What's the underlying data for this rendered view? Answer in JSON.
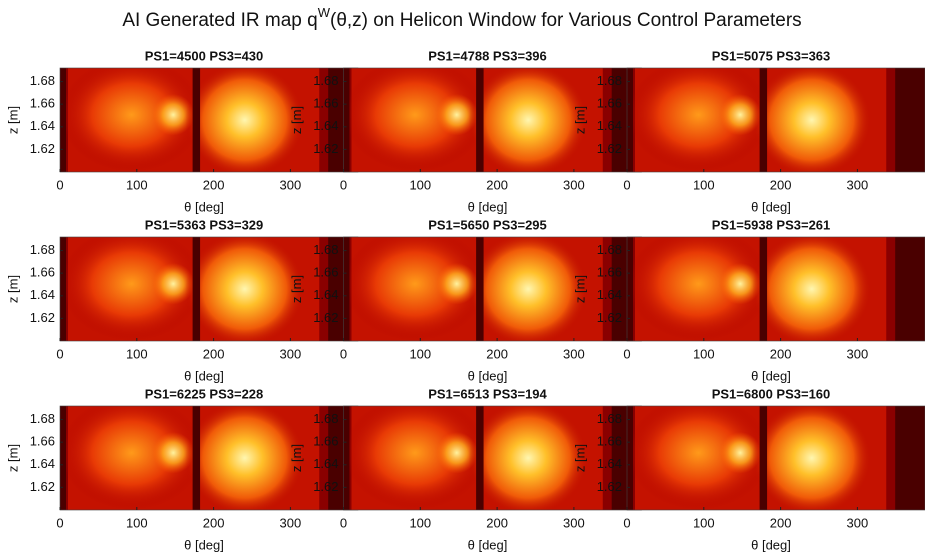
{
  "title_parts": [
    "AI Generated IR map q",
    "W",
    "(θ,z) on Helicon Window for Various Control Parameters"
  ],
  "chart_data": [
    {
      "type": "heatmap",
      "title": "PS1=4500 PS3=430",
      "xlabel": "θ [deg]",
      "ylabel": "z [m]",
      "xlim": [
        0,
        388
      ],
      "ylim": [
        1.6,
        1.692
      ],
      "xticks": [
        0,
        100,
        200,
        300
      ],
      "yticks": [
        1.62,
        1.64,
        1.66,
        1.68
      ]
    },
    {
      "type": "heatmap",
      "title": "PS1=4788 PS3=396",
      "xlabel": "θ [deg]",
      "ylabel": "z [m]",
      "xlim": [
        0,
        388
      ],
      "ylim": [
        1.6,
        1.692
      ],
      "xticks": [
        0,
        100,
        200,
        300
      ],
      "yticks": [
        1.62,
        1.64,
        1.66,
        1.68
      ]
    },
    {
      "type": "heatmap",
      "title": "PS1=5075 PS3=363",
      "xlabel": "θ [deg]",
      "ylabel": "z [m]",
      "xlim": [
        0,
        388
      ],
      "ylim": [
        1.6,
        1.692
      ],
      "xticks": [
        0,
        100,
        200,
        300
      ],
      "yticks": [
        1.62,
        1.64,
        1.66,
        1.68
      ]
    },
    {
      "type": "heatmap",
      "title": "PS1=5363 PS3=329",
      "xlabel": "θ [deg]",
      "ylabel": "z [m]",
      "xlim": [
        0,
        388
      ],
      "ylim": [
        1.6,
        1.692
      ],
      "xticks": [
        0,
        100,
        200,
        300
      ],
      "yticks": [
        1.62,
        1.64,
        1.66,
        1.68
      ]
    },
    {
      "type": "heatmap",
      "title": "PS1=5650 PS3=295",
      "xlabel": "θ [deg]",
      "ylabel": "z [m]",
      "xlim": [
        0,
        388
      ],
      "ylim": [
        1.6,
        1.692
      ],
      "xticks": [
        0,
        100,
        200,
        300
      ],
      "yticks": [
        1.62,
        1.64,
        1.66,
        1.68
      ]
    },
    {
      "type": "heatmap",
      "title": "PS1=5938 PS3=261",
      "xlabel": "θ [deg]",
      "ylabel": "z [m]",
      "xlim": [
        0,
        388
      ],
      "ylim": [
        1.6,
        1.692
      ],
      "xticks": [
        0,
        100,
        200,
        300
      ],
      "yticks": [
        1.62,
        1.64,
        1.66,
        1.68
      ]
    },
    {
      "type": "heatmap",
      "title": "PS1=6225 PS3=228",
      "xlabel": "θ [deg]",
      "ylabel": "z [m]",
      "xlim": [
        0,
        388
      ],
      "ylim": [
        1.6,
        1.692
      ],
      "xticks": [
        0,
        100,
        200,
        300
      ],
      "yticks": [
        1.62,
        1.64,
        1.66,
        1.68
      ]
    },
    {
      "type": "heatmap",
      "title": "PS1=6513 PS3=194",
      "xlabel": "θ [deg]",
      "ylabel": "z [m]",
      "xlim": [
        0,
        388
      ],
      "ylim": [
        1.6,
        1.692
      ],
      "xticks": [
        0,
        100,
        200,
        300
      ],
      "yticks": [
        1.62,
        1.64,
        1.66,
        1.68
      ]
    },
    {
      "type": "heatmap",
      "title": "PS1=6800 PS3=160",
      "xlabel": "θ [deg]",
      "ylabel": "z [m]",
      "xlim": [
        0,
        388
      ],
      "ylim": [
        1.6,
        1.692
      ],
      "xticks": [
        0,
        100,
        200,
        300
      ],
      "yticks": [
        1.62,
        1.64,
        1.66,
        1.68
      ]
    }
  ]
}
